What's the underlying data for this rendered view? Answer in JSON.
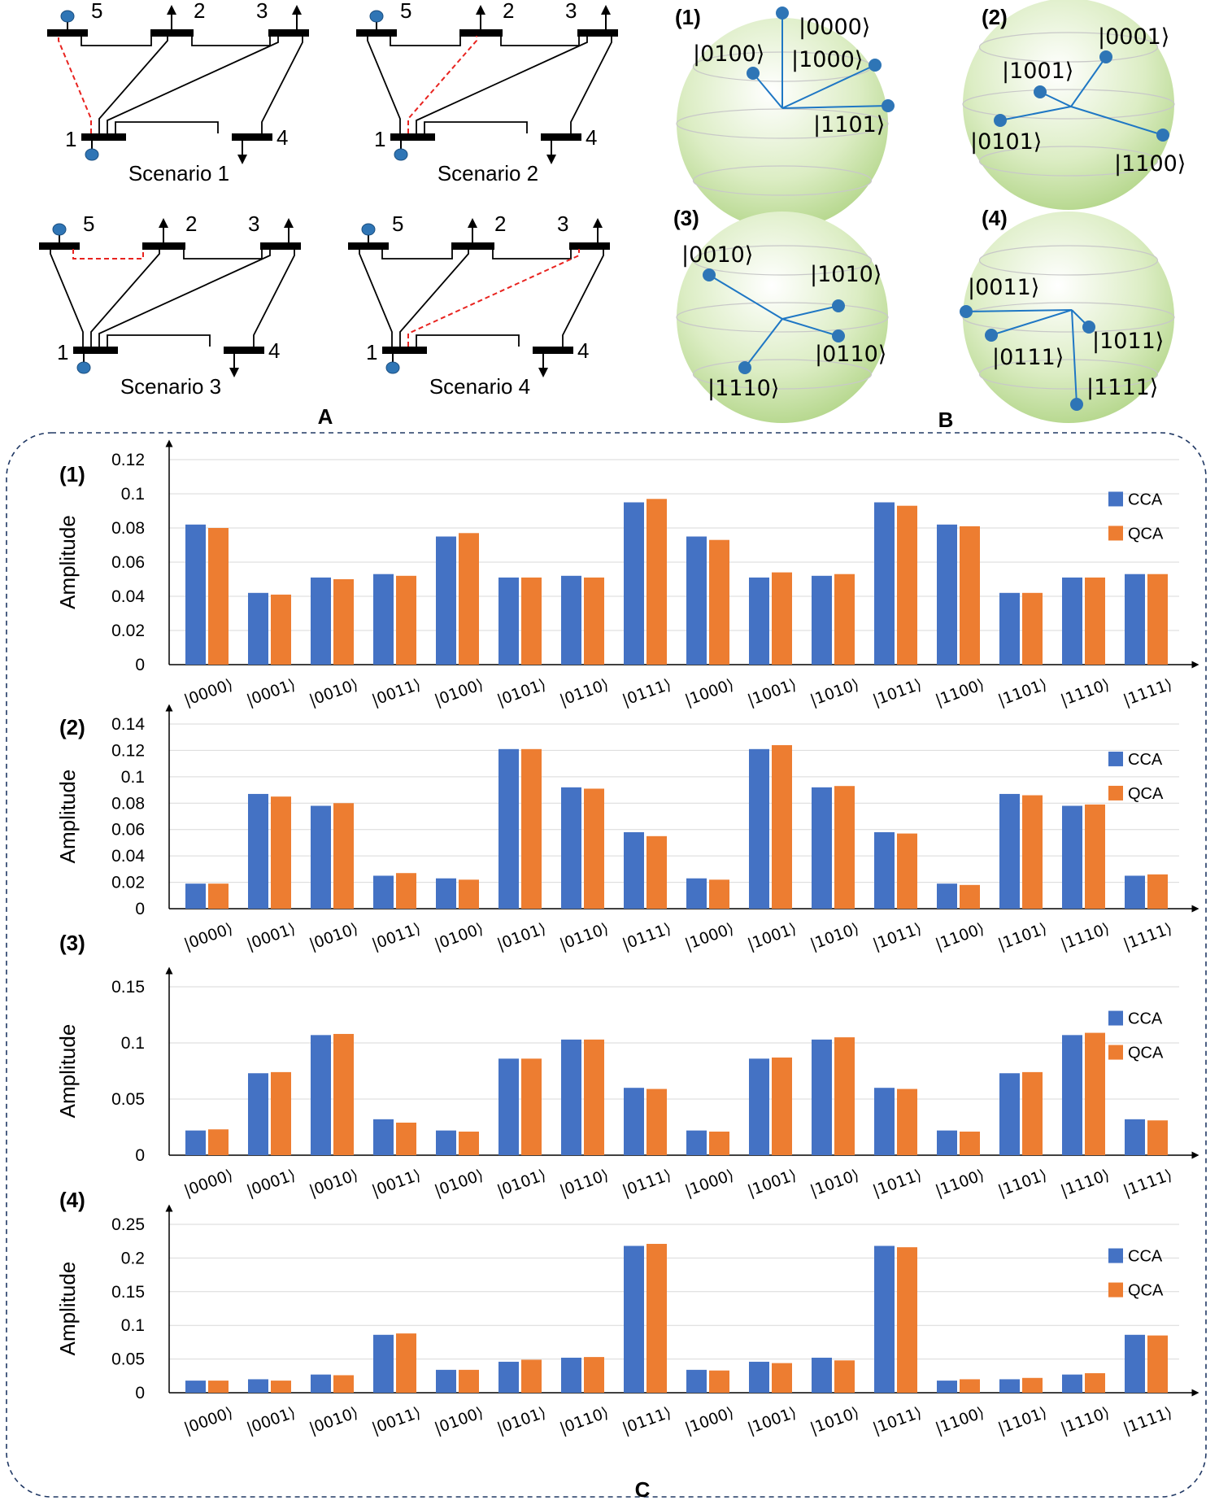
{
  "panel_labels": {
    "a": "A",
    "b": "B",
    "c": "C"
  },
  "network": {
    "scenarios": [
      {
        "title": "Scenario 1",
        "dashed_line": "1-5"
      },
      {
        "title": "Scenario 2",
        "dashed_line": "1-2"
      },
      {
        "title": "Scenario 3",
        "dashed_line": "5-2"
      },
      {
        "title": "Scenario 4",
        "dashed_line": "1-3"
      }
    ],
    "bus_labels": [
      "1",
      "2",
      "3",
      "4",
      "5"
    ],
    "colors": {
      "line": "#000000",
      "dashed": "#e8231f",
      "generator": "#2f75b5"
    }
  },
  "spheres": {
    "items": [
      {
        "label": "(1)",
        "states": [
          "|0000⟩",
          "|0100⟩",
          "|1000⟩",
          "|1101⟩"
        ]
      },
      {
        "label": "(2)",
        "states": [
          "|0001⟩",
          "|1001⟩",
          "|0101⟩",
          "|1100⟩"
        ]
      },
      {
        "label": "(3)",
        "states": [
          "|0010⟩",
          "|1010⟩",
          "|0110⟩",
          "|1110⟩"
        ]
      },
      {
        "label": "(4)",
        "states": [
          "|0011⟩",
          "|0111⟩",
          "|1011⟩",
          "|1111⟩"
        ]
      }
    ],
    "colors": {
      "sphere": "#b7d98c",
      "vector": "#1f77c4",
      "dot": "#2e75b6"
    }
  },
  "chart_data": [
    {
      "type": "bar",
      "label": "(1)",
      "categories": [
        "|0000⟩",
        "|0001⟩",
        "|0010⟩",
        "|0011⟩",
        "|0100⟩",
        "|0101⟩",
        "|0110⟩",
        "|0111⟩",
        "|1000⟩",
        "|1001⟩",
        "|1010⟩",
        "|1011⟩",
        "|1100⟩",
        "|1101⟩",
        "|1110⟩",
        "|1111⟩"
      ],
      "series": [
        {
          "name": "CCA",
          "values": [
            0.082,
            0.042,
            0.051,
            0.053,
            0.075,
            0.051,
            0.052,
            0.095,
            0.075,
            0.051,
            0.052,
            0.095,
            0.082,
            0.042,
            0.051,
            0.053
          ]
        },
        {
          "name": "QCA",
          "values": [
            0.08,
            0.041,
            0.05,
            0.052,
            0.077,
            0.051,
            0.051,
            0.097,
            0.073,
            0.054,
            0.053,
            0.093,
            0.081,
            0.042,
            0.051,
            0.053
          ]
        }
      ],
      "ylabel": "Amplitude",
      "ylim": [
        0,
        0.12
      ],
      "yticks": [
        "0",
        "0.02",
        "0.04",
        "0.06",
        "0.08",
        "0.1",
        "0.12"
      ]
    },
    {
      "type": "bar",
      "label": "(2)",
      "categories": [
        "|0000⟩",
        "|0001⟩",
        "|0010⟩",
        "|0011⟩",
        "|0100⟩",
        "|0101⟩",
        "|0110⟩",
        "|0111⟩",
        "|1000⟩",
        "|1001⟩",
        "|1010⟩",
        "|1011⟩",
        "|1100⟩",
        "|1101⟩",
        "|1110⟩",
        "|1111⟩"
      ],
      "series": [
        {
          "name": "CCA",
          "values": [
            0.019,
            0.087,
            0.078,
            0.025,
            0.023,
            0.121,
            0.092,
            0.058,
            0.023,
            0.121,
            0.092,
            0.058,
            0.019,
            0.087,
            0.078,
            0.025
          ]
        },
        {
          "name": "QCA",
          "values": [
            0.019,
            0.085,
            0.08,
            0.027,
            0.022,
            0.121,
            0.091,
            0.055,
            0.022,
            0.124,
            0.093,
            0.057,
            0.018,
            0.086,
            0.079,
            0.026
          ]
        }
      ],
      "ylabel": "Amplitude",
      "ylim": [
        0,
        0.14
      ],
      "yticks": [
        "0",
        "0.02",
        "0.04",
        "0.06",
        "0.08",
        "0.1",
        "0.12",
        "0.14"
      ]
    },
    {
      "type": "bar",
      "label": "(3)",
      "categories": [
        "|0000⟩",
        "|0001⟩",
        "|0010⟩",
        "|0011⟩",
        "|0100⟩",
        "|0101⟩",
        "|0110⟩",
        "|0111⟩",
        "|1000⟩",
        "|1001⟩",
        "|1010⟩",
        "|1011⟩",
        "|1100⟩",
        "|1101⟩",
        "|1110⟩",
        "|1111⟩"
      ],
      "series": [
        {
          "name": "CCA",
          "values": [
            0.022,
            0.073,
            0.107,
            0.032,
            0.022,
            0.086,
            0.103,
            0.06,
            0.022,
            0.086,
            0.103,
            0.06,
            0.022,
            0.073,
            0.107,
            0.032
          ]
        },
        {
          "name": "QCA",
          "values": [
            0.023,
            0.074,
            0.108,
            0.029,
            0.021,
            0.086,
            0.103,
            0.059,
            0.021,
            0.087,
            0.105,
            0.059,
            0.021,
            0.074,
            0.109,
            0.031
          ]
        }
      ],
      "ylabel": "Amplitude",
      "ylim": [
        0,
        0.15
      ],
      "yticks": [
        "0",
        "0.05",
        "0.1",
        "0.15"
      ]
    },
    {
      "type": "bar",
      "label": "(4)",
      "categories": [
        "|0000⟩",
        "|0001⟩",
        "|0010⟩",
        "|0011⟩",
        "|0100⟩",
        "|0101⟩",
        "|0110⟩",
        "|0111⟩",
        "|1000⟩",
        "|1001⟩",
        "|1010⟩",
        "|1011⟩",
        "|1100⟩",
        "|1101⟩",
        "|1110⟩",
        "|1111⟩"
      ],
      "series": [
        {
          "name": "CCA",
          "values": [
            0.018,
            0.02,
            0.027,
            0.086,
            0.034,
            0.046,
            0.052,
            0.218,
            0.034,
            0.046,
            0.052,
            0.218,
            0.018,
            0.02,
            0.027,
            0.086
          ]
        },
        {
          "name": "QCA",
          "values": [
            0.018,
            0.018,
            0.026,
            0.088,
            0.034,
            0.049,
            0.053,
            0.221,
            0.033,
            0.044,
            0.048,
            0.216,
            0.02,
            0.022,
            0.029,
            0.085
          ]
        }
      ],
      "ylabel": "Amplitude",
      "ylim": [
        0,
        0.25
      ],
      "yticks": [
        "0",
        "0.05",
        "0.1",
        "0.15",
        "0.2",
        "0.25"
      ]
    }
  ],
  "colors": {
    "cca": "#4472c4",
    "qca": "#ed7d31",
    "grid": "#d9d9d9",
    "frame": "#203864"
  }
}
